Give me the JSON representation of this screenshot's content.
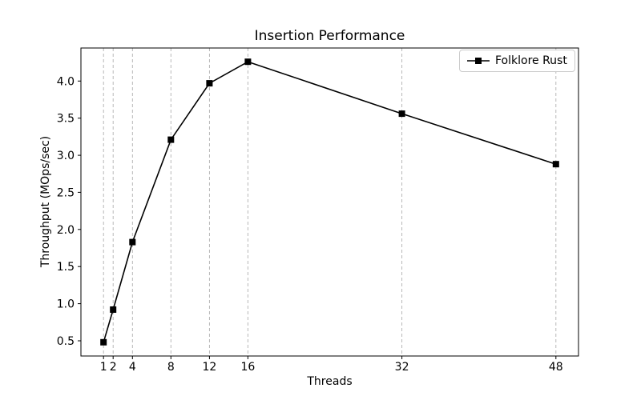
{
  "chart_data": {
    "type": "line",
    "title": "Insertion Performance",
    "xlabel": "Threads",
    "ylabel": "Throughput (MOps/sec)",
    "x": [
      1,
      2,
      4,
      8,
      12,
      16,
      32,
      48
    ],
    "series": [
      {
        "name": "Folklore Rust",
        "color": "#000000",
        "marker": "square",
        "values": [
          0.48,
          0.92,
          1.83,
          3.21,
          3.97,
          4.26,
          3.56,
          2.88
        ]
      }
    ],
    "xticks": [
      1,
      2,
      4,
      8,
      12,
      16,
      32,
      48
    ],
    "xticklabels": [
      "1",
      "2",
      "4",
      "8",
      "12",
      "16",
      "32",
      "48"
    ],
    "yticks": [
      0.5,
      1.0,
      1.5,
      2.0,
      2.5,
      3.0,
      3.5,
      4.0
    ],
    "yticklabels": [
      "0.5",
      "1.0",
      "1.5",
      "2.0",
      "2.5",
      "3.0",
      "3.5",
      "4.0"
    ],
    "xlim": [
      -1.35,
      50.35
    ],
    "ylim": [
      0.295,
      4.445
    ],
    "grid": "vertical-dashed",
    "grid_color": "#b0b0b0",
    "axis_color": "#000000",
    "legend_position": "upper right"
  }
}
